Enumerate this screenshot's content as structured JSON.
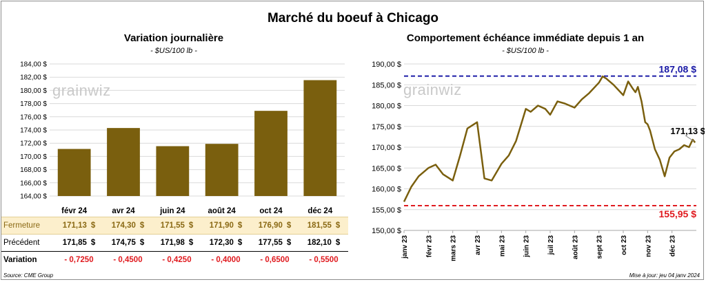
{
  "title": "Marché du boeuf à Chicago",
  "left": {
    "title": "Variation journalière",
    "unit": "- $US/100 lb -",
    "watermark": "grainwiz",
    "table": {
      "rows": [
        {
          "label": "Fermeture",
          "values": [
            "171,13",
            "174,30",
            "171,55",
            "171,90",
            "176,90",
            "181,55"
          ],
          "currency": "$"
        },
        {
          "label": "Précédent",
          "values": [
            "171,85",
            "174,75",
            "171,98",
            "172,30",
            "177,55",
            "182,10"
          ],
          "currency": "$"
        },
        {
          "label": "Variation",
          "values": [
            "- 0,7250",
            "- 0,4500",
            "- 0,4250",
            "- 0,4000",
            "- 0,6500",
            "- 0,5500"
          ],
          "currency": ""
        }
      ]
    },
    "source": "Source: CME Group"
  },
  "right": {
    "title": "Comportement  échéance immédiate depuis 1 an",
    "unit": "- $US/100 lb -",
    "watermark": "grainwiz",
    "high_label": "187,08 $",
    "low_label": "155,95 $",
    "last_label": "171,13 $",
    "updated": "Mise à jour: jeu 04 janv 2024"
  },
  "chart_data": [
    {
      "type": "bar",
      "title": "Variation journalière",
      "categories": [
        "févr 24",
        "avr 24",
        "juin 24",
        "août 24",
        "oct 24",
        "déc 24"
      ],
      "values": [
        171.13,
        174.3,
        171.55,
        171.9,
        176.9,
        181.55
      ],
      "ylim": [
        164,
        184
      ],
      "yticks": [
        "164,00 $",
        "166,00 $",
        "168,00 $",
        "170,00 $",
        "172,00 $",
        "174,00 $",
        "176,00 $",
        "178,00 $",
        "180,00 $",
        "182,00 $",
        "184,00 $"
      ],
      "grid": true,
      "color": "#7a5f0e"
    },
    {
      "type": "line",
      "title": "Comportement  échéance immédiate depuis 1 an",
      "ylim": [
        150,
        190
      ],
      "yticks": [
        "150,00 $",
        "155,00 $",
        "160,00 $",
        "165,00 $",
        "170,00 $",
        "175,00 $",
        "180,00 $",
        "185,00 $",
        "190,00 $"
      ],
      "xticks": [
        "janv 23",
        "févr 23",
        "mars 23",
        "avr 23",
        "mai 23",
        "juin 23",
        "juil 23",
        "août 23",
        "sept 23",
        "oct 23",
        "nov 23",
        "déc 23"
      ],
      "x": [
        0,
        0.3,
        0.6,
        1.0,
        1.3,
        1.6,
        2.0,
        2.3,
        2.6,
        3.0,
        3.3,
        3.6,
        4.0,
        4.3,
        4.6,
        5.0,
        5.2,
        5.5,
        5.8,
        6.0,
        6.3,
        6.6,
        7.0,
        7.3,
        7.6,
        8.0,
        8.15,
        8.3,
        8.6,
        9.0,
        9.2,
        9.4,
        9.5,
        9.6,
        9.75,
        9.9,
        10.0,
        10.1,
        10.3,
        10.5,
        10.7,
        10.9,
        11.1,
        11.3,
        11.5,
        11.7,
        11.85,
        11.95
      ],
      "y": [
        156.9,
        160.5,
        163.0,
        165.0,
        165.8,
        163.5,
        162.0,
        168.0,
        174.5,
        176.0,
        162.5,
        162.0,
        166.0,
        168.0,
        171.5,
        179.2,
        178.5,
        180.0,
        179.2,
        177.8,
        181.0,
        180.5,
        179.5,
        181.5,
        183.0,
        185.5,
        187.0,
        186.5,
        185.0,
        182.5,
        185.8,
        184.0,
        183.2,
        184.5,
        181.0,
        176.0,
        175.5,
        174.0,
        169.5,
        167.0,
        163.0,
        167.5,
        169.0,
        169.5,
        170.5,
        170.0,
        171.8,
        171.13
      ],
      "reference_lines": [
        {
          "value": 187.08,
          "label": "187,08 $",
          "color": "#1a1aa6"
        },
        {
          "value": 155.95,
          "label": "155,95 $",
          "color": "#e0191e"
        }
      ],
      "last_value": 171.13,
      "grid": true,
      "color": "#7a5f0e"
    }
  ]
}
